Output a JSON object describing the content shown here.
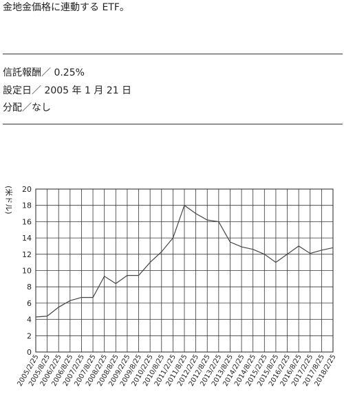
{
  "header": {
    "lead": "金地金価格に連動する ETF。"
  },
  "details": [
    "信託報酬／ 0.25%",
    "設定日／ 2005 年 1 月 21 日",
    "分配／なし"
  ],
  "chart_data": {
    "type": "line",
    "y_label": "(米ドル)",
    "categories": [
      "2005/2/25",
      "2005/8/25",
      "2006/2/25",
      "2006/8/25",
      "2007/2/25",
      "2007/8/25",
      "2008/2/25",
      "2008/8/25",
      "2009/2/25",
      "2009/8/25",
      "2010/2/25",
      "2010/8/25",
      "2011/2/25",
      "2011/8/25",
      "2012/2/25",
      "2012/8/25",
      "2013/2/25",
      "2013/8/25",
      "2014/2/25",
      "2014/8/25",
      "2015/2/25",
      "2015/8/25",
      "2016/2/25",
      "2016/8/25",
      "2017/2/25",
      "2017/8/25",
      "2018/2/25"
    ],
    "series": [
      {
        "color": "#444444",
        "values": [
          4.3,
          4.4,
          5.5,
          6.3,
          6.7,
          6.7,
          9.3,
          8.4,
          9.4,
          9.4,
          11.0,
          12.3,
          14.0,
          18.0,
          17.0,
          16.2,
          16.0,
          13.5,
          12.9,
          12.6,
          12.0,
          11.0,
          12.0,
          13.0,
          12.1,
          12.5,
          12.8
        ]
      }
    ],
    "ylim": [
      0,
      20
    ],
    "yticks": [
      0,
      2,
      4,
      6,
      8,
      10,
      12,
      14,
      16,
      18,
      20
    ],
    "grid": true
  }
}
